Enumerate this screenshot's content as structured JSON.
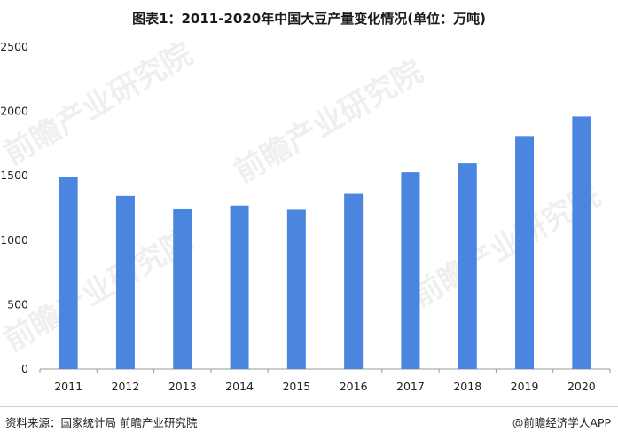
{
  "title": "图表1：2011-2020年中国大豆产量变化情况(单位：万吨)",
  "source": "资料来源：国家统计局 前瞻产业研究院",
  "credit": "@前瞻经济学人APP",
  "watermark": "前瞻产业研究院",
  "colors": {
    "bar": "#4a86e0",
    "axis": "#999999",
    "text": "#222222"
  },
  "chart_data": {
    "type": "bar",
    "title": "图表1：2011-2020年中国大豆产量变化情况(单位：万吨)",
    "categories": [
      "2011",
      "2012",
      "2013",
      "2014",
      "2015",
      "2016",
      "2017",
      "2018",
      "2019",
      "2020"
    ],
    "values": [
      1488,
      1344,
      1240,
      1269,
      1237,
      1360,
      1528,
      1597,
      1809,
      1960
    ],
    "yticks": [
      "0",
      "500",
      "1000",
      "1500",
      "2000",
      "2500"
    ],
    "ylim": [
      0,
      2500
    ],
    "grid": false,
    "legend": "none"
  }
}
